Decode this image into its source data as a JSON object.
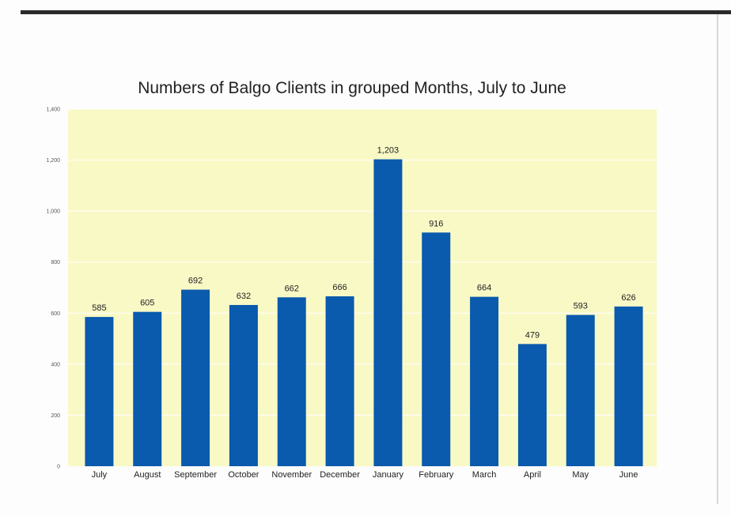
{
  "chart_data": {
    "type": "bar",
    "title": "Numbers of Balgo Clients in grouped Months, July to June",
    "xlabel": "",
    "ylabel": "",
    "categories": [
      "July",
      "August",
      "September",
      "October",
      "November",
      "December",
      "January",
      "February",
      "March",
      "April",
      "May",
      "June"
    ],
    "values": [
      585,
      605,
      692,
      632,
      662,
      666,
      1203,
      916,
      664,
      479,
      593,
      626
    ],
    "value_labels": [
      "585",
      "605",
      "692",
      "632",
      "662",
      "666",
      "1,203",
      "916",
      "664",
      "479",
      "593",
      "626"
    ],
    "ylim": [
      0,
      1400
    ],
    "yticks": [
      0,
      200,
      400,
      600,
      800,
      1000,
      1200,
      1400
    ],
    "ytick_labels": [
      "0",
      "200",
      "400",
      "600",
      "800",
      "1,000",
      "1,200",
      "1,400"
    ],
    "grid": true,
    "legend": "none",
    "colors": {
      "bar": "#0a5aad",
      "plot_background": "#f9f9c6",
      "gridline": "#ffffff"
    }
  }
}
